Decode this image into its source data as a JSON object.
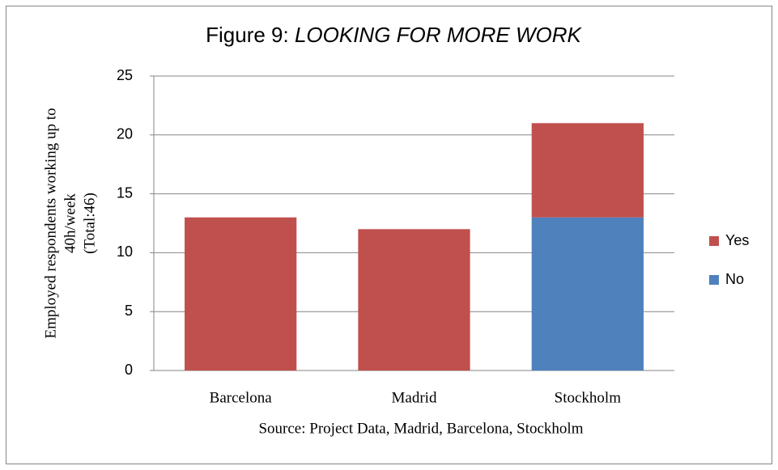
{
  "chart_data": {
    "type": "stacked_bar",
    "title": "Figure 9: ",
    "title_emphasis": "LOOKING FOR MORE WORK",
    "y_label": [
      "Employed respondents working up to",
      "40h/week",
      "(Total:46)"
    ],
    "x_label": "Source: Project Data, Madrid, Barcelona, Stockholm",
    "categories": [
      "Barcelona",
      "Madrid",
      "Stockholm"
    ],
    "series": [
      {
        "name": "No",
        "color": "#4f81bd",
        "values": [
          0,
          0,
          13
        ]
      },
      {
        "name": "Yes",
        "color": "#c0504d",
        "values": [
          13,
          12,
          8
        ]
      }
    ],
    "ylim": [
      0,
      25
    ],
    "yticks": [
      0,
      5,
      10,
      15,
      20,
      25
    ],
    "grid": true,
    "legend": "right"
  }
}
